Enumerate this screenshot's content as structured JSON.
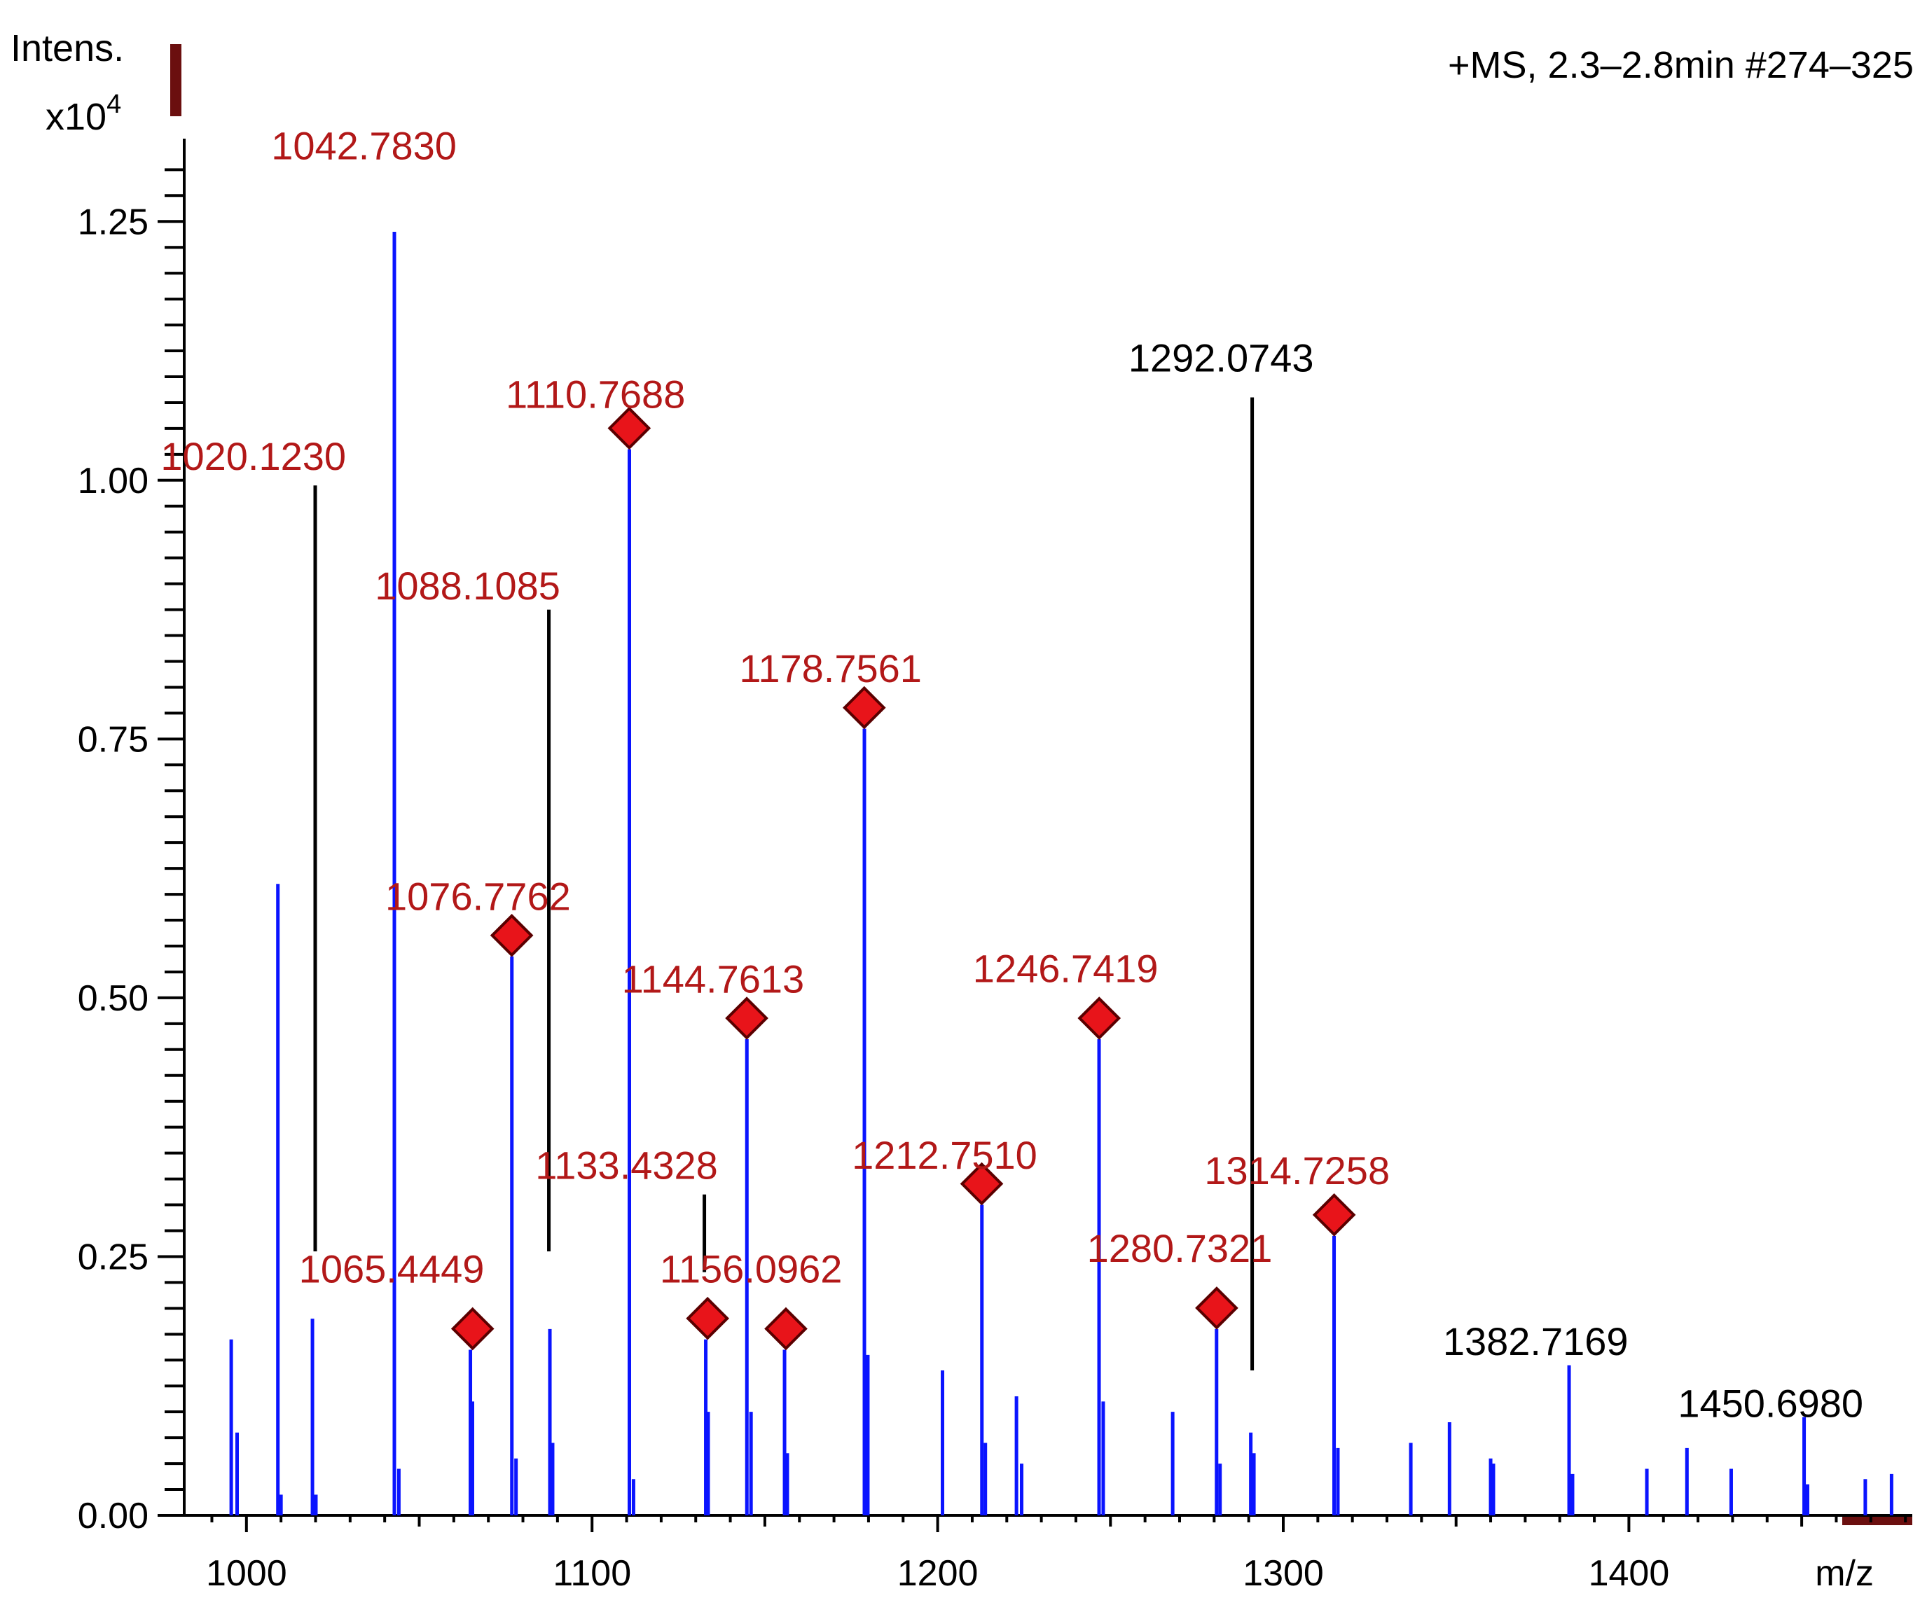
{
  "chart_data": {
    "type": "stem",
    "title": "+MS, 2.3–2.8min #274–325",
    "ylabel": "Intens.",
    "yscale_label": "x10",
    "yscale_exponent": "4",
    "xlabel": "m/z",
    "xlim": [
      982,
      1482
    ],
    "ylim": [
      0,
      1.33
    ],
    "xticks": [
      1000,
      1100,
      1200,
      1300,
      1400
    ],
    "yticks": [
      0.0,
      0.25,
      0.5,
      0.75,
      1.0,
      1.25
    ],
    "ytick_labels": [
      "0.00",
      "0.25",
      "0.50",
      "0.75",
      "1.00",
      "1.25"
    ],
    "colors": {
      "peaks": "#0a14ff",
      "annotation_red": "#b21818",
      "marker": "#e8141a",
      "scale_bar": "#6b0f0f"
    },
    "peaks": [
      [
        995.6,
        0.17
      ],
      [
        997.3,
        0.08
      ],
      [
        1009.1,
        0.61
      ],
      [
        1010.0,
        0.02
      ],
      [
        1019.1,
        0.19
      ],
      [
        1020.1,
        0.02
      ],
      [
        1042.8,
        1.24
      ],
      [
        1044.1,
        0.045
      ],
      [
        1064.8,
        0.16
      ],
      [
        1065.4,
        0.11
      ],
      [
        1076.8,
        0.54
      ],
      [
        1078.0,
        0.055
      ],
      [
        1087.8,
        0.18
      ],
      [
        1088.6,
        0.07
      ],
      [
        1110.8,
        1.03
      ],
      [
        1112.0,
        0.035
      ],
      [
        1132.9,
        0.17
      ],
      [
        1133.6,
        0.1
      ],
      [
        1144.8,
        0.46
      ],
      [
        1146.0,
        0.1
      ],
      [
        1155.7,
        0.16
      ],
      [
        1156.5,
        0.06
      ],
      [
        1178.8,
        0.76
      ],
      [
        1179.8,
        0.155
      ],
      [
        1201.4,
        0.14
      ],
      [
        1212.8,
        0.3
      ],
      [
        1213.8,
        0.07
      ],
      [
        1222.8,
        0.115
      ],
      [
        1224.3,
        0.05
      ],
      [
        1246.7,
        0.46
      ],
      [
        1247.9,
        0.11
      ],
      [
        1268.0,
        0.1
      ],
      [
        1280.7,
        0.18
      ],
      [
        1281.7,
        0.05
      ],
      [
        1290.6,
        0.08
      ],
      [
        1291.5,
        0.06
      ],
      [
        1314.7,
        0.27
      ],
      [
        1315.8,
        0.065
      ],
      [
        1336.9,
        0.07
      ],
      [
        1348.1,
        0.09
      ],
      [
        1360.0,
        0.055
      ],
      [
        1360.8,
        0.05
      ],
      [
        1382.7,
        0.145
      ],
      [
        1383.7,
        0.04
      ],
      [
        1405.2,
        0.045
      ],
      [
        1416.8,
        0.065
      ],
      [
        1429.6,
        0.045
      ],
      [
        1450.7,
        0.095
      ],
      [
        1451.7,
        0.03
      ],
      [
        1468.4,
        0.035
      ],
      [
        1476.0,
        0.04
      ]
    ],
    "annotations": [
      {
        "label": "1042.7830",
        "mz": 1042.783,
        "intensity": 1.24,
        "color": "red",
        "marker": false,
        "label_x": 1034.0,
        "label_y": 1.31
      },
      {
        "label": "1020.1230",
        "mz": 1020.123,
        "intensity": 0.19,
        "color": "red",
        "marker": false,
        "label_x": 1002.0,
        "label_y": 1.01,
        "leader": [
          1019.9,
          0.995,
          0.255
        ]
      },
      {
        "label": "1110.7688",
        "mz": 1110.7688,
        "intensity": 1.03,
        "color": "red",
        "marker": true,
        "label_x": 1101.0,
        "label_y": 1.07
      },
      {
        "label": "1088.1085",
        "mz": 1088.1085,
        "intensity": 0.18,
        "color": "red",
        "marker": false,
        "label_x": 1064.0,
        "label_y": 0.885,
        "leader": [
          1087.5,
          0.875,
          0.255
        ]
      },
      {
        "label": "1178.7561",
        "mz": 1178.7561,
        "intensity": 0.76,
        "color": "red",
        "marker": true,
        "label_x": 1169.0,
        "label_y": 0.805
      },
      {
        "label": "1292.0743",
        "mz": 1292.0743,
        "intensity": 0.08,
        "color": "black",
        "marker": false,
        "label_x": 1282.0,
        "label_y": 1.105,
        "leader": [
          1291.0,
          1.08,
          0.14
        ]
      },
      {
        "label": "1076.7762",
        "mz": 1076.7762,
        "intensity": 0.54,
        "color": "red",
        "marker": true,
        "label_x": 1067.0,
        "label_y": 0.585
      },
      {
        "label": "1144.7613",
        "mz": 1144.7613,
        "intensity": 0.46,
        "color": "red",
        "marker": true,
        "label_x": 1135.0,
        "label_y": 0.505
      },
      {
        "label": "1246.7419",
        "mz": 1246.7419,
        "intensity": 0.46,
        "color": "red",
        "marker": true,
        "label_x": 1237.0,
        "label_y": 0.515
      },
      {
        "label": "1212.7510",
        "mz": 1212.751,
        "intensity": 0.3,
        "color": "red",
        "marker": true,
        "label_x": 1202.0,
        "label_y": 0.335
      },
      {
        "label": "1133.4328",
        "mz": 1133.4328,
        "intensity": 0.17,
        "color": "red",
        "marker": true,
        "label_x": 1110.0,
        "label_y": 0.325,
        "leader": [
          1132.5,
          0.31,
          0.235
        ]
      },
      {
        "label": "1314.7258",
        "mz": 1314.7258,
        "intensity": 0.27,
        "color": "red",
        "marker": true,
        "label_x": 1304.0,
        "label_y": 0.32
      },
      {
        "label": "1065.4449",
        "mz": 1065.4449,
        "intensity": 0.16,
        "color": "red",
        "marker": true,
        "label_x": 1042.0,
        "label_y": 0.225
      },
      {
        "label": "1156.0962",
        "mz": 1156.0962,
        "intensity": 0.16,
        "color": "red",
        "marker": true,
        "label_x": 1146.0,
        "label_y": 0.225
      },
      {
        "label": "1280.7321",
        "mz": 1280.7321,
        "intensity": 0.18,
        "color": "red",
        "marker": true,
        "label_x": 1270.0,
        "label_y": 0.245
      },
      {
        "label": "1382.7169",
        "mz": 1382.7169,
        "intensity": 0.145,
        "color": "black",
        "marker": false,
        "label_x": 1373.0,
        "label_y": 0.155
      },
      {
        "label": "1450.6980",
        "mz": 1450.698,
        "intensity": 0.095,
        "color": "black",
        "marker": false,
        "label_x": 1441.0,
        "label_y": 0.095
      }
    ]
  }
}
